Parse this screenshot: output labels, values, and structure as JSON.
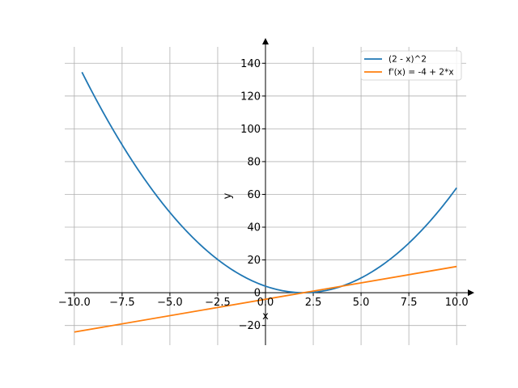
{
  "chart_data": {
    "type": "line",
    "title": "",
    "xlabel": "x",
    "ylabel": "y",
    "xlim": [
      -10.5,
      10.5
    ],
    "ylim": [
      -32,
      150
    ],
    "grid": true,
    "legend_position": "top-right",
    "x_ticks": [
      -10,
      -7.5,
      -5,
      -2.5,
      0,
      2.5,
      5,
      7.5,
      10
    ],
    "x_tick_labels": [
      "−10.0",
      "−7.5",
      "−5.0",
      "−2.5",
      "0.0",
      "2.5",
      "5.0",
      "7.5",
      "10.0"
    ],
    "y_ticks": [
      -20,
      0,
      20,
      40,
      60,
      80,
      100,
      120,
      140
    ],
    "y_tick_labels": [
      "−20",
      "0",
      "20",
      "40",
      "60",
      "80",
      "100",
      "120",
      "140"
    ],
    "series": [
      {
        "name": "(2 - x)^2",
        "color": "#1f77b4",
        "x": [
          -9.6,
          -9,
          -8,
          -7,
          -6,
          -5,
          -4,
          -3,
          -2,
          -1,
          0,
          1,
          2,
          3,
          4,
          5,
          6,
          7,
          8,
          9,
          10
        ],
        "y": [
          134.56,
          121,
          100,
          81,
          64,
          49,
          36,
          25,
          16,
          9,
          4,
          1,
          0,
          1,
          4,
          9,
          16,
          25,
          36,
          49,
          64
        ]
      },
      {
        "name": "f'(x) = -4 + 2*x",
        "color": "#ff7f0e",
        "x": [
          -10,
          10
        ],
        "y": [
          -24,
          16
        ]
      }
    ]
  }
}
